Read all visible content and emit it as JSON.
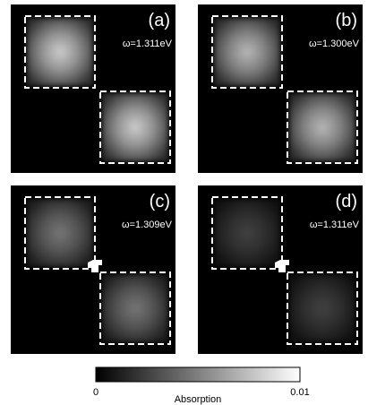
{
  "panels": [
    {
      "label": "(a)",
      "energy": "ω=1.311eV"
    },
    {
      "label": "(b)",
      "energy": "ω=1.300eV"
    },
    {
      "label": "(c)",
      "energy": "ω=1.309eV"
    },
    {
      "label": "(d)",
      "energy": "ω=1.311eV"
    }
  ],
  "colorbar": {
    "label": "Absorption",
    "ticks": [
      "0",
      "0.01"
    ]
  }
}
